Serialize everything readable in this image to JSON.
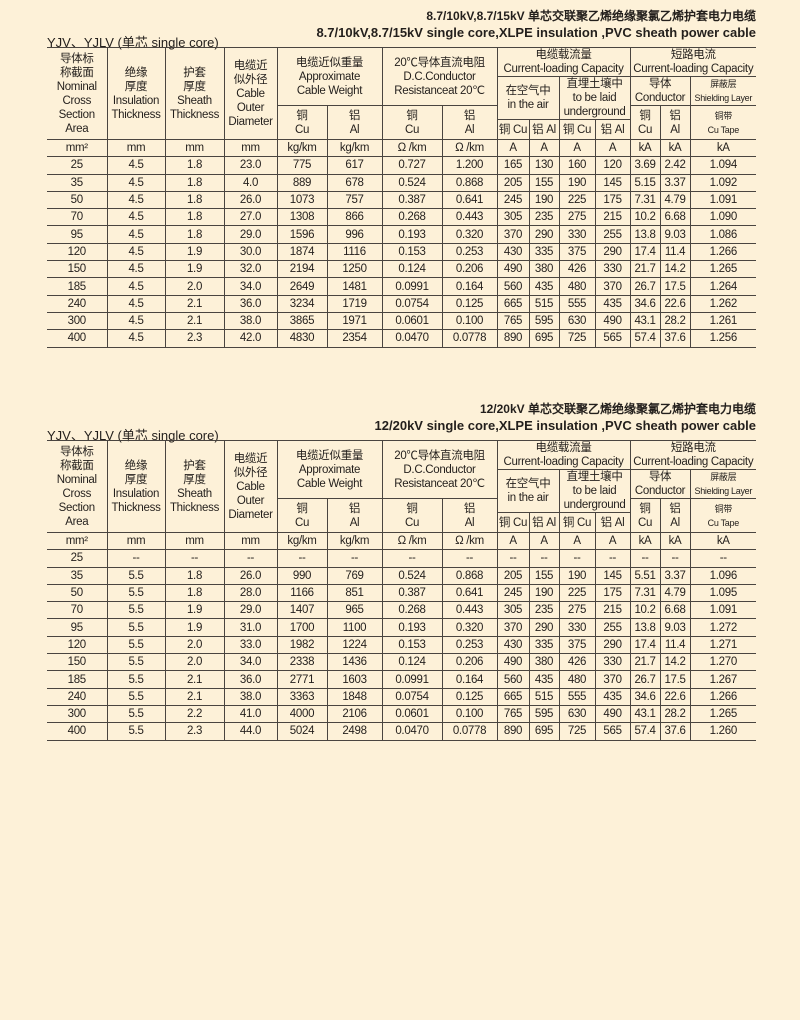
{
  "header_labels": {
    "nominal": "导体标\n称截面\nNominal\nCross\nSection\nArea",
    "insulation": "绝缘\n厚度\nInsulation\nThickness",
    "sheath": "护套\n厚度\nSheath\nThickness",
    "diameter": "电缆近\n似外径\nCable\nOuter\nDiameter",
    "weight": "电缆近似重量\nApproximate\nCable Weight",
    "weight_cu": "铜\nCu",
    "weight_al": "铝\nAl",
    "resistance": "20℃导体直流电阻\nD.C.Conductor\nResistanceat 20℃",
    "res_cu": "铜\nCu",
    "res_al": "铝\nAl",
    "current": "电缆载流量\nCurrent-loading Capacity",
    "air": "在空气中\nin the air",
    "underground": "直埋土壤中\nto be laid\nunderground",
    "air_cu": "铜 Cu",
    "air_al": "铝 Al",
    "ug_cu": "铜 Cu",
    "ug_al": "铝 Al",
    "short": "短路电流\nCurrent-loading Capacity",
    "conductor": "导体\nConductor",
    "shield": "屏蔽层\nShielding Layer",
    "sc_cu": "铜\nCu",
    "sc_al": "铝\nAl",
    "tape": "铜带\nCu Tape"
  },
  "units": [
    "mm²",
    "mm",
    "mm",
    "mm",
    "kg/km",
    "kg/km",
    "Ω /km",
    "Ω /km",
    "A",
    "A",
    "A",
    "A",
    "kA",
    "kA",
    "kA"
  ],
  "tables": [
    {
      "title_cn": "8.7/10kV,8.7/15kV 单芯交联聚乙烯绝缘聚氯乙烯护套电力电缆",
      "title_en": "8.7/10kV,8.7/15kV single  core,XLPE insulation ,PVC sheath power cable",
      "subtitle": "YJV、YJLV (单芯  single core)",
      "rows": [
        [
          "25",
          "4.5",
          "1.8",
          "23.0",
          "775",
          "617",
          "0.727",
          "1.200",
          "165",
          "130",
          "160",
          "120",
          "3.69",
          "2.42",
          "1.094"
        ],
        [
          "35",
          "4.5",
          "1.8",
          "4.0",
          "889",
          "678",
          "0.524",
          "0.868",
          "205",
          "155",
          "190",
          "145",
          "5.15",
          "3.37",
          "1.092"
        ],
        [
          "50",
          "4.5",
          "1.8",
          "26.0",
          "1073",
          "757",
          "0.387",
          "0.641",
          "245",
          "190",
          "225",
          "175",
          "7.31",
          "4.79",
          "1.091"
        ],
        [
          "70",
          "4.5",
          "1.8",
          "27.0",
          "1308",
          "866",
          "0.268",
          "0.443",
          "305",
          "235",
          "275",
          "215",
          "10.2",
          "6.68",
          "1.090"
        ],
        [
          "95",
          "4.5",
          "1.8",
          "29.0",
          "1596",
          "996",
          "0.193",
          "0.320",
          "370",
          "290",
          "330",
          "255",
          "13.8",
          "9.03",
          "1.086"
        ],
        [
          "120",
          "4.5",
          "1.9",
          "30.0",
          "1874",
          "1116",
          "0.153",
          "0.253",
          "430",
          "335",
          "375",
          "290",
          "17.4",
          "11.4",
          "1.266"
        ],
        [
          "150",
          "4.5",
          "1.9",
          "32.0",
          "2194",
          "1250",
          "0.124",
          "0.206",
          "490",
          "380",
          "426",
          "330",
          "21.7",
          "14.2",
          "1.265"
        ],
        [
          "185",
          "4.5",
          "2.0",
          "34.0",
          "2649",
          "1481",
          "0.0991",
          "0.164",
          "560",
          "435",
          "480",
          "370",
          "26.7",
          "17.5",
          "1.264"
        ],
        [
          "240",
          "4.5",
          "2.1",
          "36.0",
          "3234",
          "1719",
          "0.0754",
          "0.125",
          "665",
          "515",
          "555",
          "435",
          "34.6",
          "22.6",
          "1.262"
        ],
        [
          "300",
          "4.5",
          "2.1",
          "38.0",
          "3865",
          "1971",
          "0.0601",
          "0.100",
          "765",
          "595",
          "630",
          "490",
          "43.1",
          "28.2",
          "1.261"
        ],
        [
          "400",
          "4.5",
          "2.3",
          "42.0",
          "4830",
          "2354",
          "0.0470",
          "0.0778",
          "890",
          "695",
          "725",
          "565",
          "57.4",
          "37.6",
          "1.256"
        ]
      ]
    },
    {
      "title_cn": "12/20kV  单芯交联聚乙烯绝缘聚氯乙烯护套电力电缆",
      "title_en": "12/20kV single  core,XLPE insulation ,PVC sheath power cable",
      "subtitle": "YJV、YJLV (单芯  single core)",
      "rows": [
        [
          "25",
          "--",
          "--",
          "--",
          "--",
          "--",
          "--",
          "--",
          "--",
          "--",
          "--",
          "--",
          "--",
          "--",
          "--"
        ],
        [
          "35",
          "5.5",
          "1.8",
          "26.0",
          "990",
          "769",
          "0.524",
          "0.868",
          "205",
          "155",
          "190",
          "145",
          "5.51",
          "3.37",
          "1.096"
        ],
        [
          "50",
          "5.5",
          "1.8",
          "28.0",
          "1166",
          "851",
          "0.387",
          "0.641",
          "245",
          "190",
          "225",
          "175",
          "7.31",
          "4.79",
          "1.095"
        ],
        [
          "70",
          "5.5",
          "1.9",
          "29.0",
          "1407",
          "965",
          "0.268",
          "0.443",
          "305",
          "235",
          "275",
          "215",
          "10.2",
          "6.68",
          "1.091"
        ],
        [
          "95",
          "5.5",
          "1.9",
          "31.0",
          "1700",
          "1100",
          "0.193",
          "0.320",
          "370",
          "290",
          "330",
          "255",
          "13.8",
          "9.03",
          "1.272"
        ],
        [
          "120",
          "5.5",
          "2.0",
          "33.0",
          "1982",
          "1224",
          "0.153",
          "0.253",
          "430",
          "335",
          "375",
          "290",
          "17.4",
          "11.4",
          "1.271"
        ],
        [
          "150",
          "5.5",
          "2.0",
          "34.0",
          "2338",
          "1436",
          "0.124",
          "0.206",
          "490",
          "380",
          "426",
          "330",
          "21.7",
          "14.2",
          "1.270"
        ],
        [
          "185",
          "5.5",
          "2.1",
          "36.0",
          "2771",
          "1603",
          "0.0991",
          "0.164",
          "560",
          "435",
          "480",
          "370",
          "26.7",
          "17.5",
          "1.267"
        ],
        [
          "240",
          "5.5",
          "2.1",
          "38.0",
          "3363",
          "1848",
          "0.0754",
          "0.125",
          "665",
          "515",
          "555",
          "435",
          "34.6",
          "22.6",
          "1.266"
        ],
        [
          "300",
          "5.5",
          "2.2",
          "41.0",
          "4000",
          "2106",
          "0.0601",
          "0.100",
          "765",
          "595",
          "630",
          "490",
          "43.1",
          "28.2",
          "1.265"
        ],
        [
          "400",
          "5.5",
          "2.3",
          "44.0",
          "5024",
          "2498",
          "0.0470",
          "0.0778",
          "890",
          "695",
          "725",
          "565",
          "57.4",
          "37.6",
          "1.260"
        ]
      ]
    }
  ]
}
